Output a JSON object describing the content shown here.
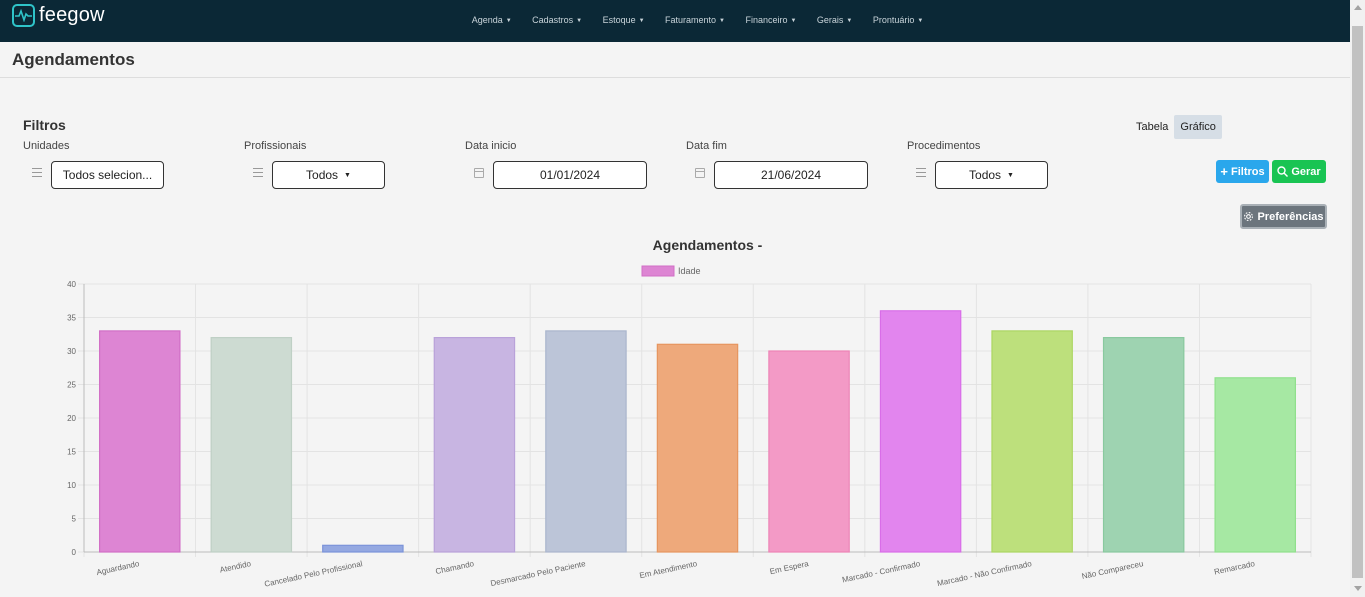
{
  "app": {
    "name": "feegow"
  },
  "nav": [
    {
      "label": "Agenda"
    },
    {
      "label": "Cadastros"
    },
    {
      "label": "Estoque"
    },
    {
      "label": "Faturamento"
    },
    {
      "label": "Financeiro"
    },
    {
      "label": "Gerais"
    },
    {
      "label": "Prontuário"
    }
  ],
  "page": {
    "title": "Agendamentos"
  },
  "filters": {
    "title": "Filtros",
    "unidades": {
      "label": "Unidades",
      "value": "Todos selecion..."
    },
    "profissionais": {
      "label": "Profissionais",
      "value": "Todos"
    },
    "data_inicio": {
      "label": "Data inicio",
      "value": "01/01/2024"
    },
    "data_fim": {
      "label": "Data fim",
      "value": "21/06/2024"
    },
    "procedimentos": {
      "label": "Procedimentos",
      "value": "Todos"
    }
  },
  "view_toggle": {
    "tabela": "Tabela",
    "grafico": "Gráfico",
    "active": "grafico"
  },
  "buttons": {
    "filtros": "Filtros",
    "gerar": "Gerar",
    "preferencias": "Preferências"
  },
  "colors": {
    "topbar": "#0b2836",
    "brand_accent": "#2fc4c9",
    "btn_filtros": "#2aa7ec",
    "btn_gerar": "#19c453",
    "btn_pref": "#6c757d"
  },
  "chart_data": {
    "type": "bar",
    "title": "Agendamentos -",
    "legend": [
      "Idade"
    ],
    "legend_position": "top",
    "categories": [
      "Aguardando",
      "Atendido",
      "Cancelado Pelo Profissional",
      "Chamando",
      "Desmarcado Pelo Paciente",
      "Em Atendimento",
      "Em Espera",
      "Marcado - Confirmado",
      "Marcado - Não Confirmado",
      "Não Compareceu",
      "Remarcado"
    ],
    "series": [
      {
        "name": "Idade",
        "values": [
          33,
          32,
          1,
          32,
          33,
          31,
          30,
          36,
          33,
          32,
          26
        ]
      }
    ],
    "bar_colors": [
      "#dd85d3",
      "#cddbd2",
      "#94a8e1",
      "#c8b5e2",
      "#bcc5d8",
      "#eea97b",
      "#f39ac6",
      "#e285ee",
      "#bde07c",
      "#9ed3b1",
      "#a6e8a3"
    ],
    "bar_borders": [
      "#d16ec6",
      "#bfd0c5",
      "#7b93d9",
      "#b9a2d9",
      "#aab5cd",
      "#e6955f",
      "#ed84b6",
      "#d96de8",
      "#acd662",
      "#89c99f",
      "#8fe08b"
    ],
    "yticks": [
      0,
      5,
      10,
      15,
      20,
      25,
      30,
      35,
      40
    ],
    "ylim": [
      0,
      40
    ],
    "grid": true
  }
}
